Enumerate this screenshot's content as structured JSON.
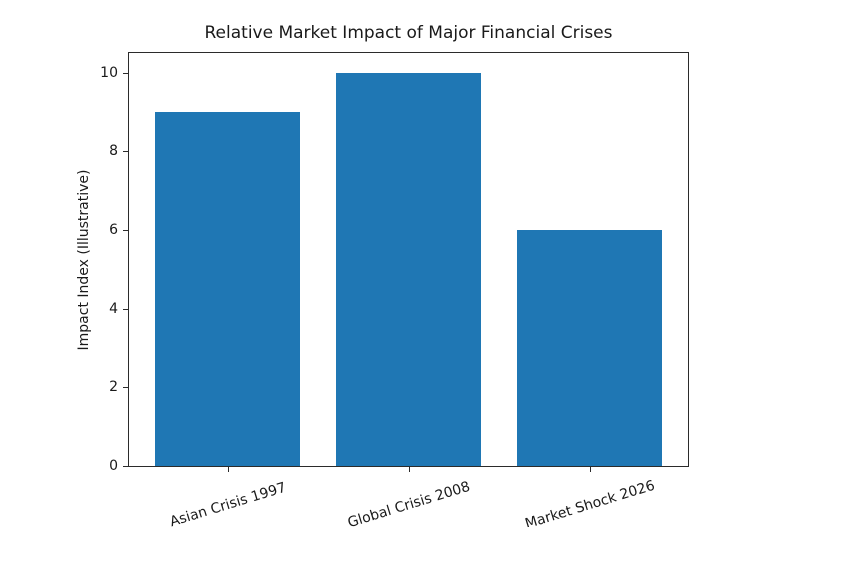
{
  "chart_data": {
    "type": "bar",
    "title": "Relative Market Impact of Major Financial Crises",
    "ylabel": "Impact Index (Illustrative)",
    "xlabel": "",
    "categories": [
      "Asian Crisis 1997",
      "Global Crisis 2008",
      "Market Shock 2026"
    ],
    "values": [
      9,
      10,
      6
    ],
    "yticks": [
      0,
      2,
      4,
      6,
      8,
      10
    ],
    "ylim": [
      0,
      10.5
    ],
    "grid": false,
    "legend": "none",
    "bar_color": "#1f77b4",
    "spine_color": "#2b2b2b",
    "text_color": "#1a1a1a",
    "background_color": "#ffffff",
    "x_tick_label_rotation_deg": 17
  }
}
